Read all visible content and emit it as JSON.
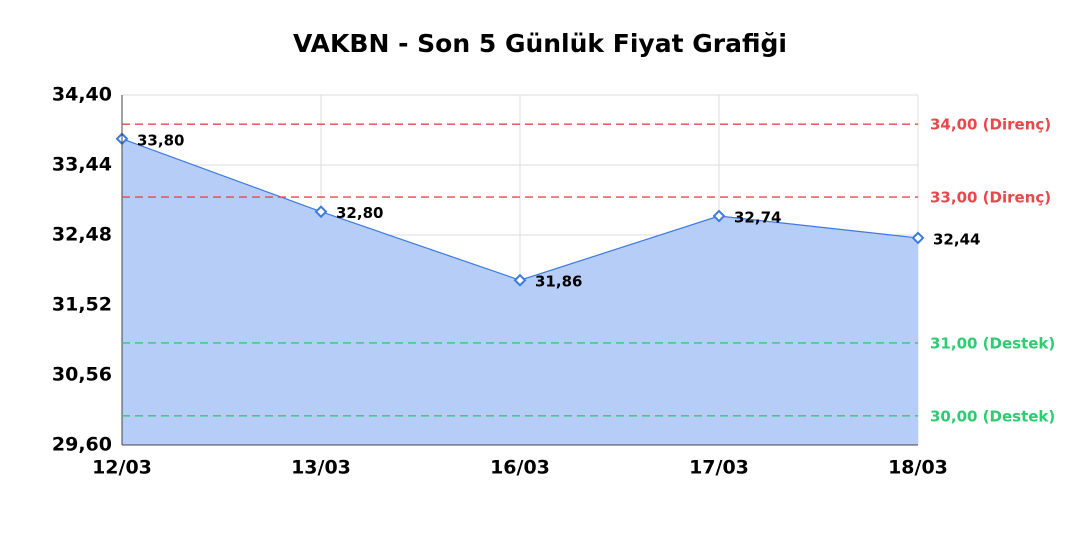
{
  "chart_data": {
    "type": "line",
    "title": "VAKBN - Son 5 Günlük Fiyat Grafiği",
    "categories": [
      "12/03",
      "13/03",
      "16/03",
      "17/03",
      "18/03"
    ],
    "series": [
      {
        "name": "VAKBN",
        "color": "#3a7be0",
        "fill_color": "#b6cdf7",
        "values": [
          33.8,
          32.8,
          31.86,
          32.74,
          32.44
        ],
        "value_labels": [
          "33,80",
          "32,80",
          "31,86",
          "32,74",
          "32,44"
        ]
      }
    ],
    "ylim": [
      29.6,
      34.4
    ],
    "yticks": [
      {
        "value": 29.6,
        "label": "29,60"
      },
      {
        "value": 30.56,
        "label": "30,56"
      },
      {
        "value": 31.52,
        "label": "31,52"
      },
      {
        "value": 32.48,
        "label": "32,48"
      },
      {
        "value": 33.44,
        "label": "33,44"
      },
      {
        "value": 34.4,
        "label": "34,40"
      }
    ],
    "grid": true,
    "reference_lines": [
      {
        "value": 34.0,
        "label": "34,00 (Direnç)",
        "color": "#e8474b"
      },
      {
        "value": 33.0,
        "label": "33,00 (Direnç)",
        "color": "#e8474b"
      },
      {
        "value": 31.0,
        "label": "31,00 (Destek)",
        "color": "#2ecc71"
      },
      {
        "value": 30.0,
        "label": "30,00 (Destek)",
        "color": "#2ecc71"
      }
    ]
  }
}
